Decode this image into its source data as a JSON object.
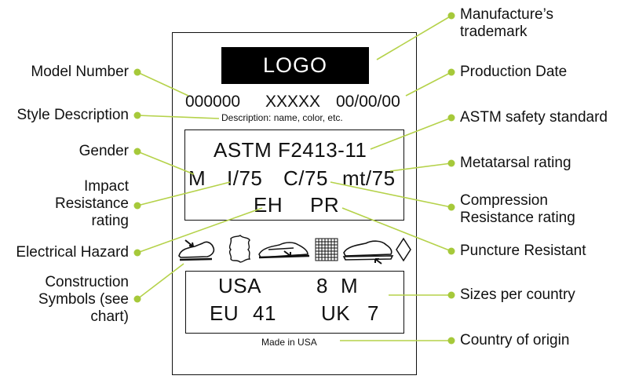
{
  "tag": {
    "logo": "LOGO",
    "model_number": "000000",
    "style_code": "XXXXX",
    "production_date": "00/00/00",
    "description": "Description: name, color, etc.",
    "astm_standard": "ASTM F2413-11",
    "gender": "M",
    "impact_rating": "I/75",
    "compression_rating": "C/75",
    "metatarsal_rating": "mt/75",
    "electrical_hazard": "EH",
    "puncture_resistant": "PR",
    "sizes": {
      "us_label": "USA",
      "us_size": "8",
      "us_gender": "M",
      "eu_label": "EU",
      "eu_size": "41",
      "uk_label": "UK",
      "uk_size": "7"
    },
    "origin": "Made in USA"
  },
  "callouts": {
    "manufacturer_trademark": "Manufacture’s trademark",
    "production_date": "Production Date",
    "astm_safety_standard": "ASTM safety standard",
    "metatarsal_rating": "Metatarsal rating",
    "compression_rating": "Compression Resistance rating",
    "puncture_resistant": "Puncture Resistant",
    "sizes_per_country": "Sizes per country",
    "country_of_origin": "Country of origin",
    "model_number": "Model Number",
    "style_description": "Style Description",
    "gender": "Gender",
    "impact_rating": "Impact Resistance rating",
    "electrical_hazard": "Electrical Hazard",
    "construction_symbols": "Construction Symbols (see chart)"
  },
  "icons": [
    "shoe-toe-arrow-icon",
    "leather-hide-icon",
    "shoe-side-arrow-icon",
    "mesh-fabric-icon",
    "shoe-sole-arrow-icon",
    "diamond-icon"
  ],
  "colors": {
    "accent": "#a6c93a",
    "ink": "#111111"
  }
}
